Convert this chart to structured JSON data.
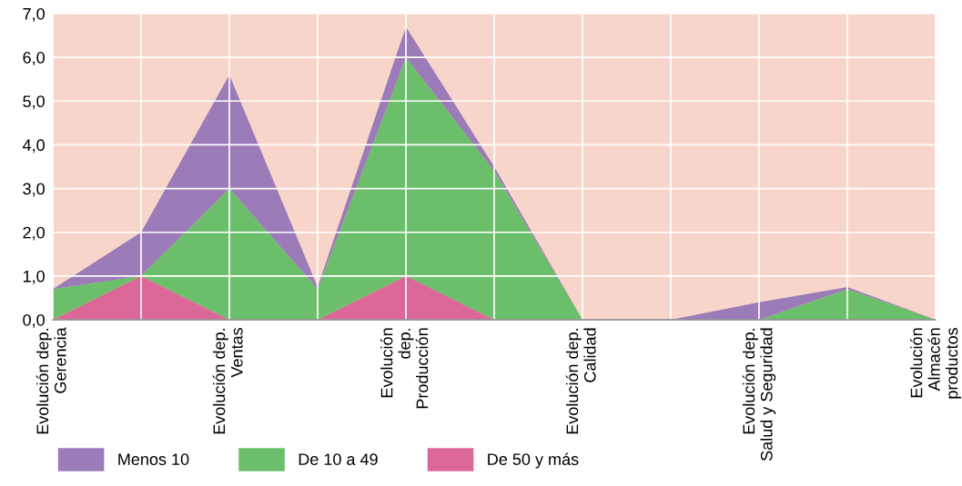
{
  "chart_data": {
    "type": "area",
    "stacked": true,
    "categories": [
      "Evolución dep.\nGerencia",
      null,
      "Evolución dep.\nVentas",
      null,
      "Evolución\ndep.\nProducción",
      null,
      "Evolución dep.\nCalidad",
      null,
      "Evolución dep.\nSalud y Seguridad",
      null,
      "Evolución\nAlmacén\nproductos"
    ],
    "series": [
      {
        "name": "De 50 y más",
        "color": "#dc6799",
        "values": [
          0,
          1.0,
          0,
          0,
          1.0,
          0,
          0,
          0,
          0,
          0,
          0
        ]
      },
      {
        "name": "De 10 a 49",
        "color": "#6bbf6a",
        "values": [
          0.7,
          0,
          3.0,
          0.7,
          5.0,
          3.4,
          0,
          0,
          0,
          0.7,
          0
        ]
      },
      {
        "name": "Menos 10",
        "color": "#9b7bb8",
        "values": [
          0,
          1.0,
          2.6,
          0.05,
          0.7,
          0.1,
          0,
          0,
          0.4,
          0.05,
          0
        ]
      }
    ],
    "ylim": [
      0,
      7
    ],
    "yticks": [
      {
        "value": 0,
        "label": "0,0"
      },
      {
        "value": 1,
        "label": "1,0"
      },
      {
        "value": 2,
        "label": "2,0"
      },
      {
        "value": 3,
        "label": "3,0"
      },
      {
        "value": 4,
        "label": "4,0"
      },
      {
        "value": 5,
        "label": "5,0"
      },
      {
        "value": 6,
        "label": "6,0"
      },
      {
        "value": 7,
        "label": "7,0"
      }
    ],
    "grid": true,
    "legend": "bottom left"
  }
}
